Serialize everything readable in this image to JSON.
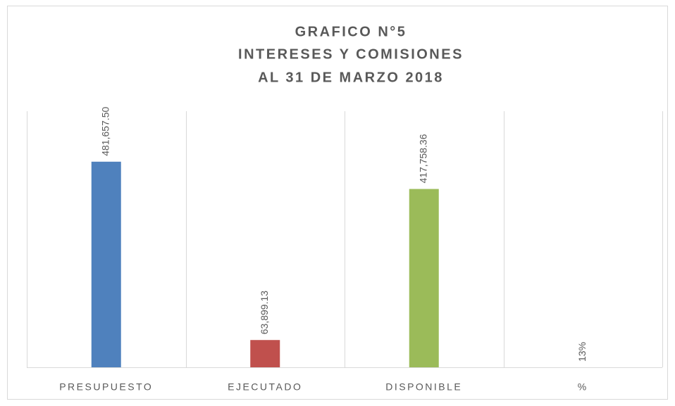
{
  "chart_data": {
    "type": "bar",
    "title": [
      "GRAFICO N°5",
      "INTERESES Y COMISIONES",
      "AL 31 DE MARZO 2018"
    ],
    "categories": [
      "PRESUPUESTO",
      "EJECUTADO",
      "DISPONIBLE",
      "%"
    ],
    "values": [
      481657.5,
      63899.13,
      417758.36,
      0.13
    ],
    "value_labels": [
      "481,657.50",
      "63,899.13",
      "417,758.36",
      "13%"
    ],
    "colors": [
      "#4f81bd",
      "#c0504d",
      "#9bbb59",
      "#8064a2"
    ],
    "ylim": [
      0,
      600000
    ]
  }
}
